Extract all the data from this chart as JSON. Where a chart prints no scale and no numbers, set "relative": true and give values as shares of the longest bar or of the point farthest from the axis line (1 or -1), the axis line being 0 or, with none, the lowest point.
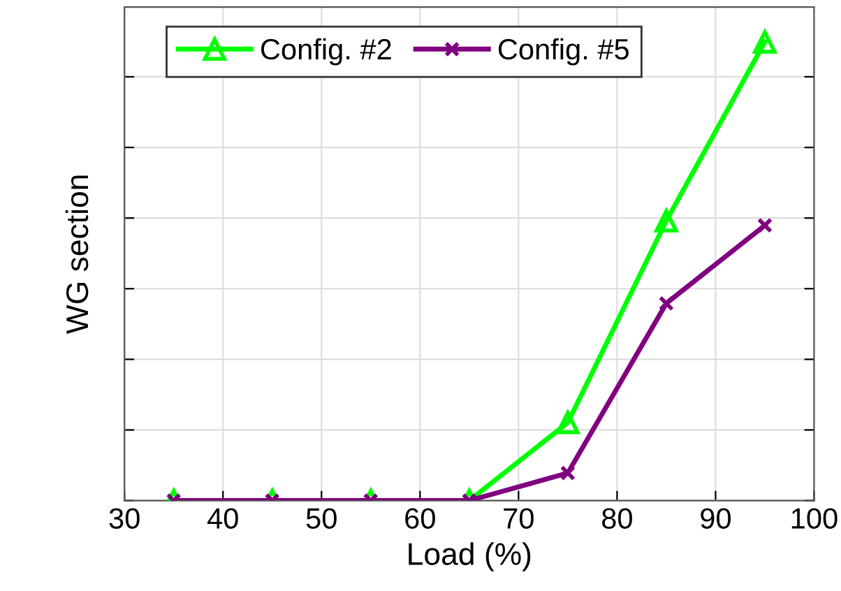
{
  "chart_data": {
    "type": "line",
    "xlabel": "Load (%)",
    "ylabel": "WG section",
    "relative": true,
    "x": [
      35,
      45,
      55,
      65,
      75,
      85,
      95
    ],
    "xlim": [
      30,
      100
    ],
    "xticks": [
      30,
      40,
      50,
      60,
      70,
      80,
      90,
      100
    ],
    "series": [
      {
        "name": "Config. #2",
        "color": "#00ff00",
        "marker": "triangle",
        "values": [
          0,
          0,
          0,
          0,
          0.17,
          0.61,
          1
        ]
      },
      {
        "name": "Config. #5",
        "color": "#800080",
        "marker": "cross",
        "values": [
          0,
          0,
          0,
          0,
          0.06,
          0.43,
          0.6
        ]
      }
    ],
    "grid": true,
    "legend": "top left",
    "line_style": "solid"
  }
}
